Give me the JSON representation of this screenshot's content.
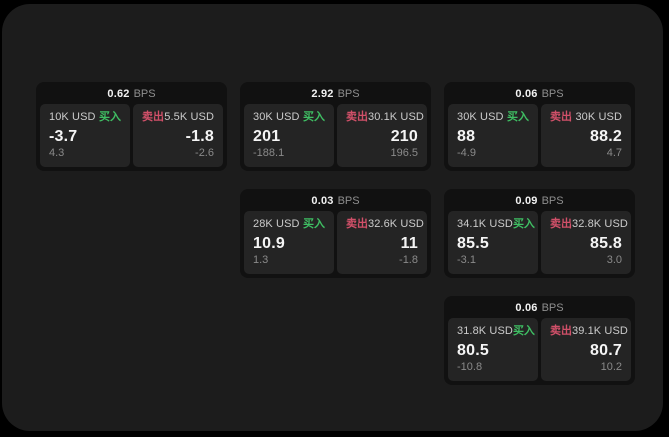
{
  "labels": {
    "bps_unit": "BPS",
    "buy": "买入",
    "sell": "卖出"
  },
  "colors": {
    "buy_green": "#3fbe63",
    "sell_red": "#d15069",
    "panel_bg": "#1c1c1c",
    "card_bg": "#111111",
    "tile_bg": "#242424"
  },
  "cards": [
    {
      "row": 1,
      "col": 1,
      "bps": "0.62",
      "buy": {
        "amount": "10K USD",
        "value": "-3.7",
        "change": "4.3"
      },
      "sell": {
        "amount": "5.5K USD",
        "value": "-1.8",
        "change": "-2.6"
      }
    },
    {
      "row": 1,
      "col": 2,
      "bps": "2.92",
      "buy": {
        "amount": "30K USD",
        "value": "201",
        "change": "-188.1"
      },
      "sell": {
        "amount": "30.1K USD",
        "value": "210",
        "change": "196.5"
      }
    },
    {
      "row": 1,
      "col": 3,
      "bps": "0.06",
      "buy": {
        "amount": "30K USD",
        "value": "88",
        "change": "-4.9"
      },
      "sell": {
        "amount": "30K USD",
        "value": "88.2",
        "change": "4.7"
      }
    },
    {
      "row": 2,
      "col": 2,
      "bps": "0.03",
      "buy": {
        "amount": "28K USD",
        "value": "10.9",
        "change": "1.3"
      },
      "sell": {
        "amount": "32.6K USD",
        "value": "11",
        "change": "-1.8"
      }
    },
    {
      "row": 2,
      "col": 3,
      "bps": "0.09",
      "buy": {
        "amount": "34.1K USD",
        "value": "85.5",
        "change": "-3.1"
      },
      "sell": {
        "amount": "32.8K USD",
        "value": "85.8",
        "change": "3.0"
      }
    },
    {
      "row": 3,
      "col": 3,
      "bps": "0.06",
      "buy": {
        "amount": "31.8K USD",
        "value": "80.5",
        "change": "-10.8"
      },
      "sell": {
        "amount": "39.1K USD",
        "value": "80.7",
        "change": "10.2"
      }
    }
  ]
}
